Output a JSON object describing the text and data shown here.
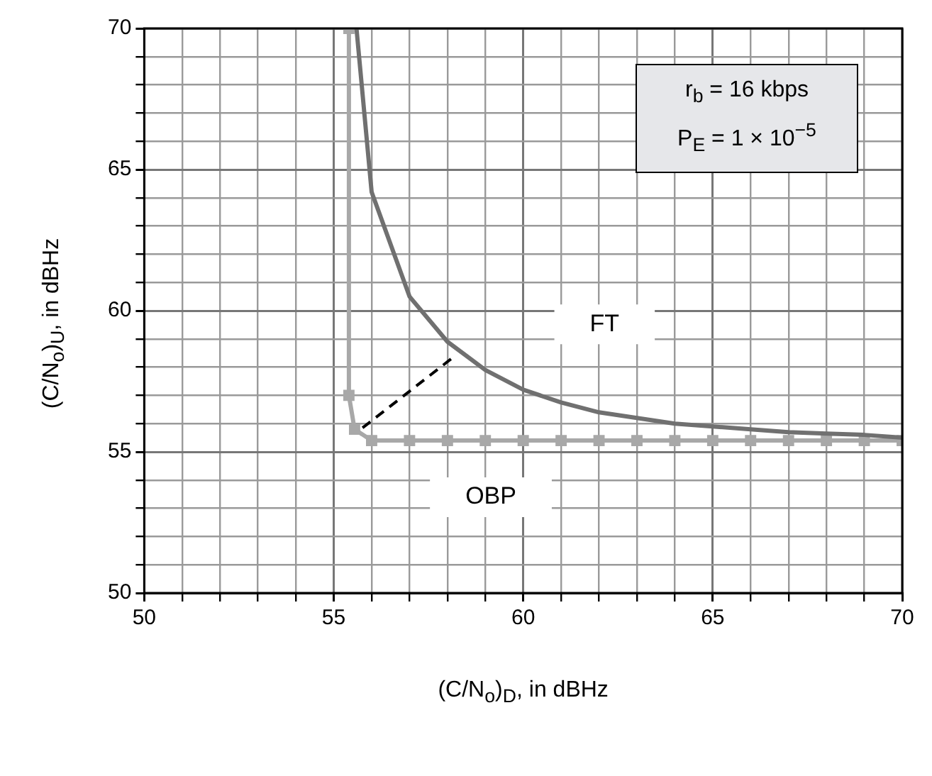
{
  "chart_data": {
    "type": "line",
    "xlabel": "(C/N$_{o}$)$_{D}$, in dBHz",
    "ylabel": "(C/N$_{o}$)$_{U}$, in dBHz",
    "xlim": [
      50,
      70
    ],
    "ylim": [
      50,
      70
    ],
    "xticks": [
      50,
      {
        "value": 51,
        "label": null
      },
      {
        "value": 52,
        "label": null
      },
      {
        "value": 53,
        "label": null
      },
      {
        "value": 54,
        "label": null
      },
      55,
      {
        "value": 56,
        "label": null
      },
      {
        "value": 57,
        "label": null
      },
      {
        "value": 58,
        "label": null
      },
      {
        "value": 59,
        "label": null
      },
      60,
      {
        "value": 61,
        "label": null
      },
      {
        "value": 62,
        "label": null
      },
      {
        "value": 63,
        "label": null
      },
      {
        "value": 64,
        "label": null
      },
      65,
      {
        "value": 66,
        "label": null
      },
      {
        "value": 67,
        "label": null
      },
      {
        "value": 68,
        "label": null
      },
      {
        "value": 69,
        "label": null
      },
      70
    ],
    "yticks": [
      50,
      {
        "value": 51,
        "label": null
      },
      {
        "value": 52,
        "label": null
      },
      {
        "value": 53,
        "label": null
      },
      {
        "value": 54,
        "label": null
      },
      55,
      {
        "value": 56,
        "label": null
      },
      {
        "value": 57,
        "label": null
      },
      {
        "value": 58,
        "label": null
      },
      {
        "value": 59,
        "label": null
      },
      60,
      {
        "value": 61,
        "label": null
      },
      {
        "value": 62,
        "label": null
      },
      {
        "value": 63,
        "label": null
      },
      {
        "value": 64,
        "label": null
      },
      65,
      {
        "value": 66,
        "label": null
      },
      {
        "value": 67,
        "label": null
      },
      {
        "value": 68,
        "label": null
      },
      {
        "value": 69,
        "label": null
      },
      70
    ],
    "grid": true,
    "legend": false,
    "series": [
      {
        "name": "FT",
        "color": "#707070",
        "marker": "none",
        "x": [
          55.6,
          56.0,
          57.0,
          58,
          59,
          60,
          61,
          62,
          63,
          64,
          65,
          66,
          67,
          68,
          69,
          70
        ],
        "values": [
          70,
          64.2,
          60.5,
          58.9,
          57.9,
          57.2,
          56.75,
          56.4,
          56.2,
          56.0,
          55.9,
          55.8,
          55.7,
          55.65,
          55.6,
          55.5
        ]
      },
      {
        "name": "OBP",
        "color": "#a8a8a8",
        "marker": "square",
        "x": [
          55.4,
          55.4,
          55.55,
          56,
          57,
          58,
          59,
          60,
          61,
          62,
          63,
          64,
          65,
          66,
          67,
          68,
          69,
          70
        ],
        "values": [
          70,
          57.0,
          55.8,
          55.4,
          55.4,
          55.4,
          55.4,
          55.4,
          55.4,
          55.4,
          55.4,
          55.4,
          55.4,
          55.4,
          55.4,
          55.4,
          55.4,
          55.4
        ]
      },
      {
        "color": "#000000",
        "marker": "none",
        "line_style": "dashed",
        "x": [
          55.76,
          58.2
        ],
        "values": [
          55.85,
          58.4
        ]
      }
    ],
    "annotations": [
      "r$_{b}$ = 16 kbps",
      "P$_{E}$ = 1 × 10$^{−5}$"
    ]
  }
}
